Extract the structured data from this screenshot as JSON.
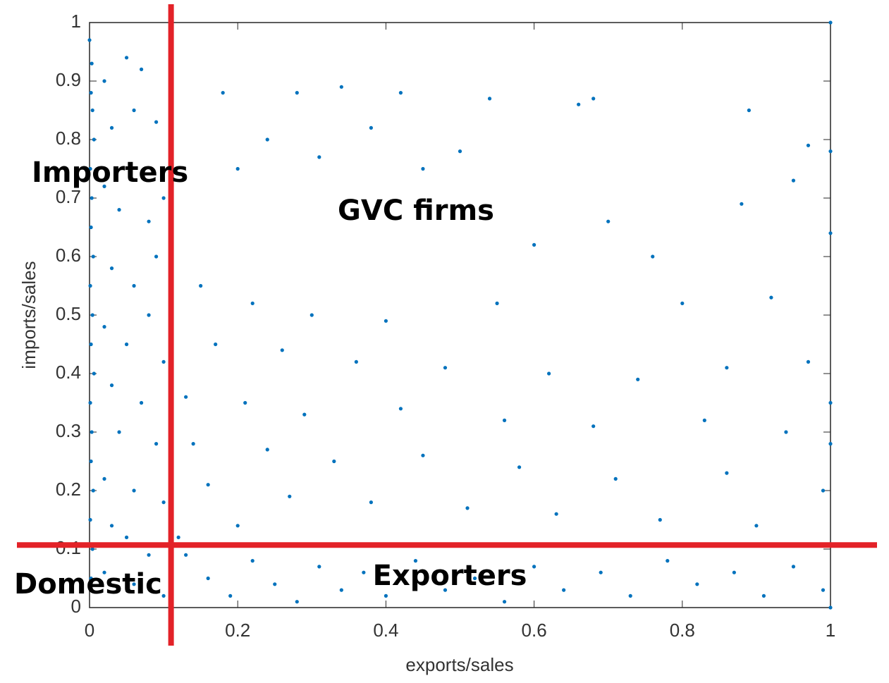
{
  "chart_data": {
    "type": "scatter",
    "x_label": "exports/sales",
    "y_label": "imports/sales",
    "color": "#0072bd",
    "line_color": "#e32228",
    "xline": 0.11,
    "yline": 0.107,
    "annotations": [
      "Importers",
      "GVC firms",
      "Domestic",
      "Exporters"
    ],
    "xlim": [
      0,
      1
    ],
    "ylim": [
      0,
      1
    ],
    "xticks": [
      0,
      0.2,
      0.4,
      0.6,
      0.8,
      1
    ],
    "yticks": [
      0,
      0.1,
      0.2,
      0.3,
      0.4,
      0.5,
      0.6,
      0.7,
      0.8,
      0.9,
      1
    ],
    "x": [
      0,
      0.003,
      0.002,
      0.004,
      0.006,
      0.001,
      0.003,
      0.002,
      0.005,
      0.001,
      0.004,
      0.002,
      0.006,
      0.001,
      0.003,
      0.002,
      0.005,
      0.001,
      0.004,
      0.002,
      0.02,
      0.05,
      0.07,
      0.03,
      0.06,
      0.09,
      0.02,
      0.04,
      0.08,
      0.1,
      0.03,
      0.06,
      0.09,
      0.02,
      0.05,
      0.08,
      0.1,
      0.03,
      0.07,
      0.04,
      0.09,
      0.02,
      0.06,
      0.1,
      0.03,
      0.05,
      0.08,
      0.02,
      0.06,
      0.1,
      0.18,
      0.28,
      0.34,
      0.42,
      0.54,
      0.66,
      0.68,
      0.89,
      0.24,
      0.38,
      0.5,
      0.97,
      0.95,
      0.31,
      0.2,
      0.45,
      0.88,
      0.7,
      0.6,
      0.76,
      0.15,
      0.22,
      0.3,
      0.4,
      0.55,
      0.8,
      0.92,
      0.17,
      0.26,
      0.36,
      0.48,
      0.62,
      0.74,
      0.86,
      0.97,
      0.13,
      0.21,
      0.29,
      0.42,
      0.56,
      0.68,
      0.83,
      0.94,
      1,
      0.14,
      0.24,
      0.33,
      0.45,
      0.58,
      0.71,
      0.86,
      0.99,
      0.16,
      0.27,
      0.38,
      0.51,
      0.63,
      0.77,
      0.9,
      0.2,
      0.13,
      0.16,
      0.19,
      0.22,
      0.25,
      0.28,
      0.31,
      0.34,
      0.37,
      0.4,
      0.44,
      0.48,
      0.52,
      0.56,
      0.6,
      0.64,
      0.69,
      0.73,
      0.78,
      0.82,
      0.87,
      0.91,
      0.95,
      0.99,
      1,
      1,
      1,
      1,
      1,
      0.12
    ],
    "values": [
      0.97,
      0.93,
      0.88,
      0.85,
      0.8,
      0.75,
      0.7,
      0.65,
      0.6,
      0.55,
      0.5,
      0.45,
      0.4,
      0.35,
      0.3,
      0.25,
      0.2,
      0.15,
      0.1,
      0.05,
      0.9,
      0.94,
      0.92,
      0.82,
      0.85,
      0.83,
      0.72,
      0.68,
      0.66,
      0.7,
      0.58,
      0.55,
      0.6,
      0.48,
      0.45,
      0.5,
      0.42,
      0.38,
      0.35,
      0.3,
      0.28,
      0.22,
      0.2,
      0.18,
      0.14,
      0.12,
      0.09,
      0.06,
      0.04,
      0.02,
      0.88,
      0.88,
      0.89,
      0.88,
      0.87,
      0.86,
      0.87,
      0.85,
      0.8,
      0.82,
      0.78,
      0.79,
      0.73,
      0.77,
      0.75,
      0.75,
      0.69,
      0.66,
      0.62,
      0.6,
      0.55,
      0.52,
      0.5,
      0.49,
      0.52,
      0.52,
      0.53,
      0.45,
      0.44,
      0.42,
      0.41,
      0.4,
      0.39,
      0.41,
      0.42,
      0.36,
      0.35,
      0.33,
      0.34,
      0.32,
      0.31,
      0.32,
      0.3,
      0.35,
      0.28,
      0.27,
      0.25,
      0.26,
      0.24,
      0.22,
      0.23,
      0.2,
      0.21,
      0.19,
      0.18,
      0.17,
      0.16,
      0.15,
      0.14,
      0.14,
      0.09,
      0.05,
      0.02,
      0.08,
      0.04,
      0.01,
      0.07,
      0.03,
      0.06,
      0.02,
      0.08,
      0.03,
      0.05,
      0.01,
      0.07,
      0.03,
      0.06,
      0.02,
      0.08,
      0.04,
      0.06,
      0.02,
      0.07,
      0.03,
      0,
      1,
      0.78,
      0.64,
      0.28,
      0.12
    ]
  }
}
